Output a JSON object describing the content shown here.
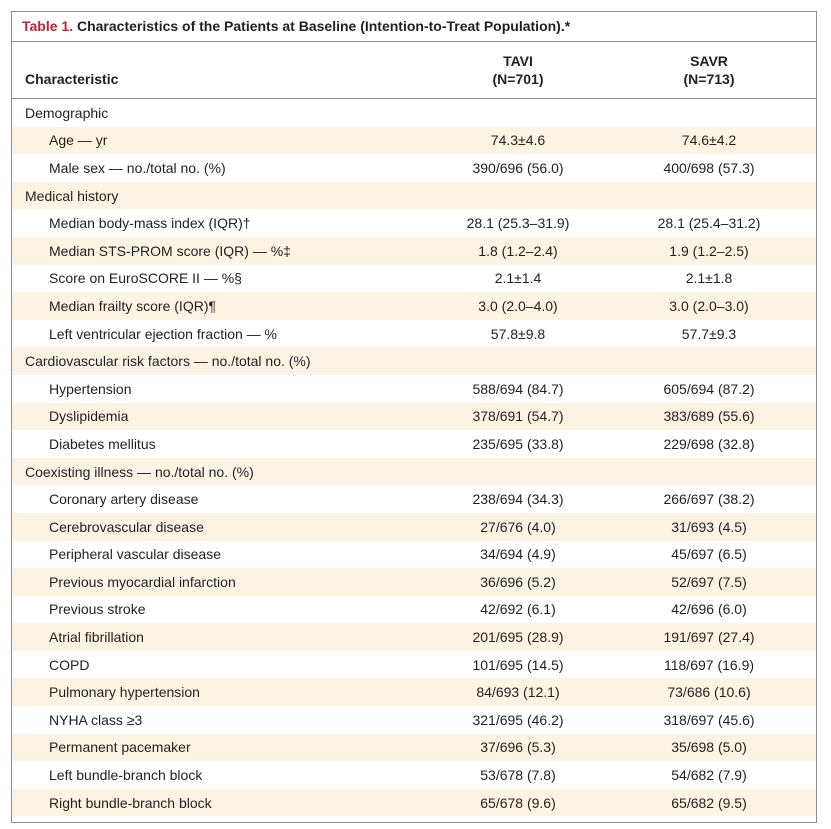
{
  "caption": {
    "number": "Table 1.",
    "title": "Characteristics of the Patients at Baseline (Intention-to-Treat Population).*"
  },
  "header": {
    "characteristic": "Characteristic",
    "tavi_name": "TAVI",
    "tavi_n": "(N=701)",
    "savr_name": "SAVR",
    "savr_n": "(N=713)"
  },
  "rows": [
    {
      "type": "section",
      "label": "Demographic",
      "tavi": "",
      "savr": ""
    },
    {
      "type": "item",
      "label": "Age — yr",
      "tavi": "74.3±4.6",
      "savr": "74.6±4.2"
    },
    {
      "type": "item",
      "label": "Male sex — no./total no. (%)",
      "tavi": "390/696 (56.0)",
      "savr": "400/698 (57.3)"
    },
    {
      "type": "section",
      "label": "Medical history",
      "tavi": "",
      "savr": ""
    },
    {
      "type": "item",
      "label": "Median body-mass index (IQR)†",
      "tavi": "28.1 (25.3–31.9)",
      "savr": "28.1 (25.4–31.2)"
    },
    {
      "type": "item",
      "label": "Median STS-PROM score (IQR) — %‡",
      "tavi": "1.8 (1.2–2.4)",
      "savr": "1.9 (1.2–2.5)"
    },
    {
      "type": "item",
      "label": "Score on EuroSCORE II — %§",
      "tavi": "2.1±1.4",
      "savr": "2.1±1.8"
    },
    {
      "type": "item",
      "label": "Median frailty score (IQR)¶",
      "tavi": "3.0 (2.0–4.0)",
      "savr": "3.0 (2.0–3.0)"
    },
    {
      "type": "item",
      "label": "Left ventricular ejection fraction — %",
      "tavi": "57.8±9.8",
      "savr": "57.7±9.3"
    },
    {
      "type": "section",
      "label": "Cardiovascular risk factors — no./total no. (%)",
      "tavi": "",
      "savr": ""
    },
    {
      "type": "item",
      "label": "Hypertension",
      "tavi": "588/694 (84.7)",
      "savr": "605/694 (87.2)"
    },
    {
      "type": "item",
      "label": "Dyslipidemia",
      "tavi": "378/691 (54.7)",
      "savr": "383/689 (55.6)"
    },
    {
      "type": "item",
      "label": "Diabetes mellitus",
      "tavi": "235/695 (33.8)",
      "savr": "229/698 (32.8)"
    },
    {
      "type": "section",
      "label": "Coexisting illness — no./total no. (%)",
      "tavi": "",
      "savr": ""
    },
    {
      "type": "item",
      "label": "Coronary artery disease",
      "tavi": "238/694 (34.3)",
      "savr": "266/697 (38.2)"
    },
    {
      "type": "item",
      "label": "Cerebrovascular disease",
      "tavi": "27/676 (4.0)",
      "savr": "31/693 (4.5)"
    },
    {
      "type": "item",
      "label": "Peripheral vascular disease",
      "tavi": "34/694 (4.9)",
      "savr": "45/697 (6.5)"
    },
    {
      "type": "item",
      "label": "Previous myocardial infarction",
      "tavi": "36/696 (5.2)",
      "savr": "52/697 (7.5)"
    },
    {
      "type": "item",
      "label": "Previous stroke",
      "tavi": "42/692 (6.1)",
      "savr": "42/696 (6.0)"
    },
    {
      "type": "item",
      "label": "Atrial fibrillation",
      "tavi": "201/695 (28.9)",
      "savr": "191/697 (27.4)"
    },
    {
      "type": "item",
      "label": "COPD",
      "tavi": "101/695 (14.5)",
      "savr": "118/697 (16.9)"
    },
    {
      "type": "item",
      "label": "Pulmonary hypertension",
      "tavi": "84/693 (12.1)",
      "savr": "73/686 (10.6)"
    },
    {
      "type": "item",
      "label": "NYHA class ≥3",
      "tavi": "321/695 (46.2)",
      "savr": "318/697 (45.6)"
    },
    {
      "type": "item",
      "label": "Permanent pacemaker",
      "tavi": "37/696 (5.3)",
      "savr": "35/698 (5.0)"
    },
    {
      "type": "item",
      "label": "Left bundle-branch block",
      "tavi": "53/678 (7.8)",
      "savr": "54/682 (7.9)"
    },
    {
      "type": "item",
      "label": "Right bundle-branch block",
      "tavi": "65/678 (9.6)",
      "savr": "65/682 (9.5)"
    }
  ]
}
